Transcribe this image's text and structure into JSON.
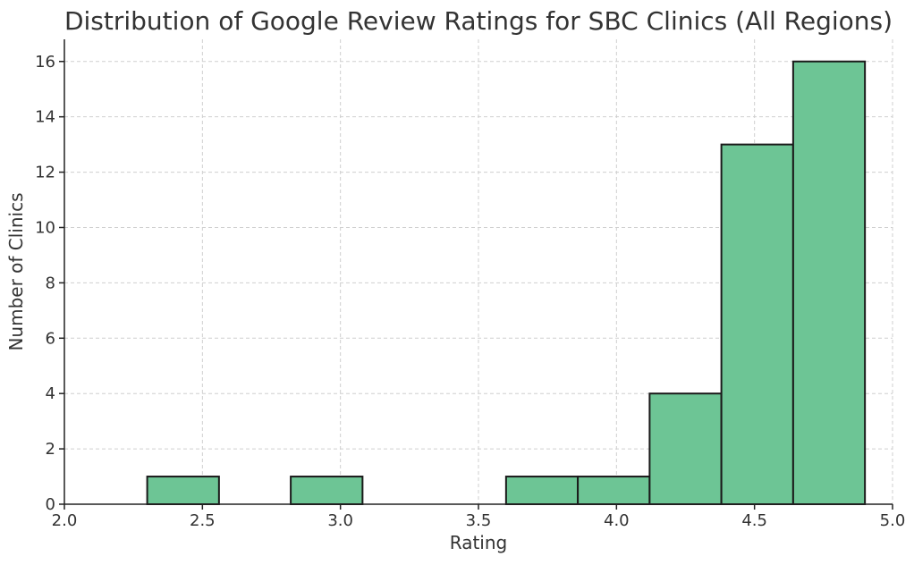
{
  "chart_data": {
    "type": "bar",
    "title": "Distribution of Google Review Ratings for SBC Clinics (All Regions)",
    "xlabel": "Rating",
    "ylabel": "Number of Clinics",
    "xlim": [
      2.0,
      5.0
    ],
    "ylim": [
      0,
      16.8
    ],
    "xticks": [
      2.0,
      2.5,
      3.0,
      3.5,
      4.0,
      4.5,
      5.0
    ],
    "xtick_labels": [
      "2.0",
      "2.5",
      "3.0",
      "3.5",
      "4.0",
      "4.5",
      "5.0"
    ],
    "yticks": [
      0,
      2,
      4,
      6,
      8,
      10,
      12,
      14,
      16
    ],
    "ytick_labels": [
      "0",
      "2",
      "4",
      "6",
      "8",
      "10",
      "12",
      "14",
      "16"
    ],
    "grid": true,
    "bar_color": "#6dc595",
    "edge_color": "#1a1a1a",
    "bins": [
      {
        "x0": 2.3,
        "x1": 2.56,
        "count": 1
      },
      {
        "x0": 2.56,
        "x1": 2.82,
        "count": 0
      },
      {
        "x0": 2.82,
        "x1": 3.08,
        "count": 1
      },
      {
        "x0": 3.08,
        "x1": 3.34,
        "count": 0
      },
      {
        "x0": 3.34,
        "x1": 3.6,
        "count": 0
      },
      {
        "x0": 3.6,
        "x1": 3.86,
        "count": 1
      },
      {
        "x0": 3.86,
        "x1": 4.12,
        "count": 1
      },
      {
        "x0": 4.12,
        "x1": 4.38,
        "count": 4
      },
      {
        "x0": 4.38,
        "x1": 4.64,
        "count": 13
      },
      {
        "x0": 4.64,
        "x1": 4.9,
        "count": 16
      }
    ]
  }
}
